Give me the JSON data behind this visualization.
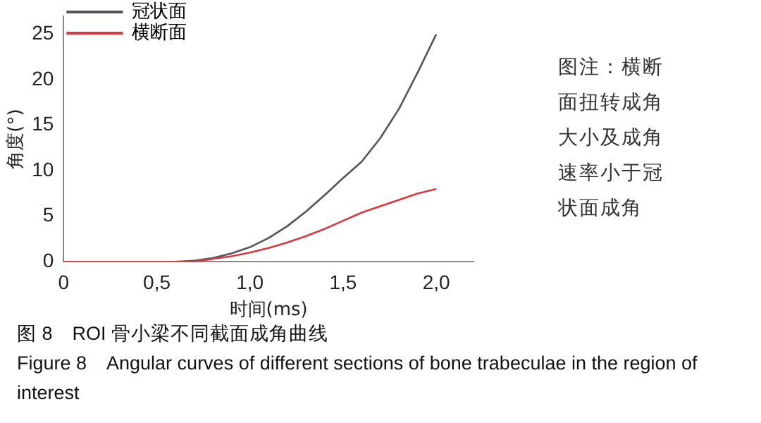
{
  "chart_data": {
    "type": "line",
    "xlabel": "时间(ms)",
    "ylabel": "角度(°)",
    "xlim": [
      0,
      2.2
    ],
    "xticks": [
      0,
      {
        "value": 0.5,
        "label": "0,5"
      },
      {
        "value": 1,
        "label": "1,0"
      },
      {
        "value": 1.5,
        "label": "1,5"
      },
      {
        "value": 2,
        "label": "2,0"
      }
    ],
    "ylim": [
      0,
      27
    ],
    "yticks": [
      0,
      5,
      10,
      15,
      20,
      25
    ],
    "grid": false,
    "legend": "top left",
    "marker": "none",
    "line_style": "solid",
    "x": [
      0,
      0.2,
      0.4,
      0.6,
      0.7,
      0.8,
      0.9,
      1.0,
      1.1,
      1.2,
      1.3,
      1.4,
      1.5,
      1.6,
      1.7,
      1.8,
      1.9,
      2.0
    ],
    "series": [
      {
        "name": "冠状面",
        "color": "#555555",
        "values": [
          null,
          null,
          null,
          0,
          0.1,
          0.4,
          0.9,
          1.6,
          2.6,
          3.9,
          5.5,
          7.3,
          9.2,
          11.0,
          13.6,
          16.8,
          20.8,
          25
        ]
      },
      {
        "name": "横断面",
        "color": "#d9393e",
        "values": [
          0,
          0,
          0,
          0,
          0,
          0.3,
          0.6,
          1.0,
          1.5,
          2.1,
          2.8,
          3.6,
          4.5,
          5.4,
          6.1,
          6.8,
          7.5,
          8.0
        ]
      }
    ],
    "annotations": [
      "图注：横断面扭转成角大小及成角速率小于冠状面成角",
      "图 8　ROI 骨小梁不同截面成角曲线",
      "Figure 8　Angular curves of different sections of bone trabeculae in the region of interest"
    ]
  }
}
